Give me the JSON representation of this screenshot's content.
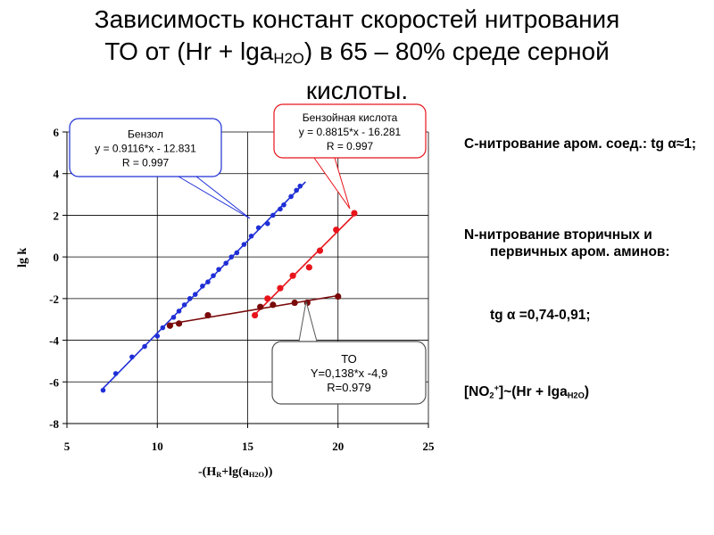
{
  "title": {
    "line1": "Зависимость констант скоростей нитрования",
    "line2_prefix": "ТО от (Hr + lga",
    "line2_sub": "H2O",
    "line2_suffix": ") в 65 – 80% среде серной",
    "line3": "кислоты."
  },
  "axes": {
    "y_label": "lg k",
    "x_label_prefix": "-(H",
    "x_label_sub1": "R",
    "x_label_mid": "+lg(a",
    "x_label_sub2": "H2O",
    "x_label_suffix": "))"
  },
  "notes": {
    "n1": "С-нитрование аром. соед.: tg α≈1;",
    "n2": "N-нитрование вторичных и первичных аром. аминов:",
    "n3": "tg α =0,74-0,91;",
    "n4_prefix": "[NO",
    "n4_sub": "2",
    "n4_sup": "+",
    "n4_mid": "]~(Hr + lga",
    "n4_sub2": "H2O",
    "n4_suffix": ")"
  },
  "chart_data": {
    "type": "scatter",
    "xlim": [
      5,
      25
    ],
    "ylim": [
      -8,
      6
    ],
    "x_ticks": [
      5,
      10,
      15,
      20,
      25
    ],
    "y_ticks": [
      -8,
      -6,
      -4,
      -2,
      0,
      2,
      4,
      6
    ],
    "grid": true,
    "series": [
      {
        "color": "#1f2fd6",
        "trend": [
          7.0,
          18.2
        ],
        "equation_lines": [
          "Бензол",
          "y = 0.9116*x - 12.831",
          "R = 0.997"
        ],
        "x": [
          7.0,
          7.7,
          8.6,
          9.3,
          10.0,
          10.3,
          10.9,
          11.2,
          11.5,
          11.8,
          12.1,
          12.5,
          12.8,
          13.1,
          13.4,
          13.8,
          14.1,
          14.4,
          14.8,
          15.2,
          15.6,
          16.1,
          16.4,
          16.8,
          17.0,
          17.4,
          17.7,
          17.9
        ],
        "y": [
          -6.4,
          -5.6,
          -4.8,
          -4.3,
          -3.8,
          -3.4,
          -2.9,
          -2.6,
          -2.3,
          -2.0,
          -1.8,
          -1.4,
          -1.2,
          -0.9,
          -0.6,
          -0.3,
          0.0,
          0.2,
          0.6,
          1.0,
          1.4,
          1.6,
          2.0,
          2.3,
          2.5,
          2.9,
          3.2,
          3.4
        ]
      },
      {
        "color": "#e8141b",
        "trend": [
          15.4,
          21.0
        ],
        "equation_lines": [
          "Бензойная кислота",
          "y = 0.8815*x - 16.281",
          "R = 0.997"
        ],
        "x": [
          15.4,
          16.1,
          16.8,
          17.5,
          18.4,
          19.0,
          19.9,
          20.9
        ],
        "y": [
          -2.8,
          -2.0,
          -1.5,
          -0.9,
          -0.5,
          0.3,
          1.3,
          2.1
        ]
      },
      {
        "color": "#7a0a0a",
        "trend": [
          10.7,
          20.0
        ],
        "equation_lines": [
          "ТО",
          "Y=0,138*x -4,9",
          "R=0.979"
        ],
        "x": [
          10.7,
          11.2,
          12.8,
          15.7,
          16.4,
          17.6,
          18.3,
          20.0
        ],
        "y": [
          -3.3,
          -3.2,
          -2.8,
          -2.4,
          -2.3,
          -2.2,
          -2.2,
          -1.9
        ]
      }
    ]
  }
}
